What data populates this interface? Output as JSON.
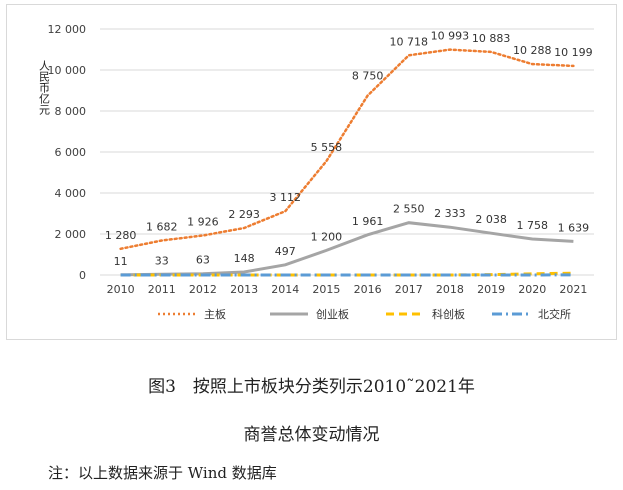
{
  "chart_data": {
    "type": "line",
    "ylabel": "人民币亿元",
    "ylim": [
      0,
      12000
    ],
    "yticks": [
      0,
      2000,
      4000,
      6000,
      8000,
      10000,
      12000
    ],
    "ytick_labels": [
      "0",
      "2 000",
      "4 000",
      "6 000",
      "8 000",
      "10 000",
      "12 000"
    ],
    "categories": [
      "2010",
      "2011",
      "2012",
      "2013",
      "2014",
      "2015",
      "2016",
      "2017",
      "2018",
      "2019",
      "2020",
      "2021"
    ],
    "grid": "horizontal",
    "legend_position": "bottom",
    "series": [
      {
        "name": "主板",
        "color": "#ED7D31",
        "style": "dotted",
        "values": [
          1280,
          1682,
          1926,
          2293,
          3112,
          5558,
          8750,
          10718,
          10993,
          10883,
          10288,
          10199
        ],
        "labels": [
          "1 280",
          "1 682",
          "1 926",
          "2 293",
          "3 112",
          "5 558",
          "8 750",
          "10 718",
          "10 993",
          "10 883",
          "10 288",
          "10 199"
        ]
      },
      {
        "name": "创业板",
        "color": "#A5A5A5",
        "style": "solid",
        "values": [
          11,
          33,
          63,
          148,
          497,
          1200,
          1961,
          2550,
          2333,
          2038,
          1758,
          1639
        ],
        "labels": [
          "11",
          "33",
          "63",
          "148",
          "497",
          "1 200",
          "1 961",
          "2 550",
          "2 333",
          "2 038",
          "1 758",
          "1 639"
        ]
      },
      {
        "name": "科创板",
        "color": "#FFC000",
        "style": "dashed",
        "values": [
          0,
          0,
          0,
          0,
          0,
          0,
          0,
          0,
          0,
          20,
          60,
          90
        ]
      },
      {
        "name": "北交所",
        "color": "#5B9BD5",
        "style": "dashdot",
        "values": [
          0,
          0,
          0,
          0,
          0,
          0,
          0,
          0,
          0,
          0,
          0,
          10
        ]
      }
    ]
  },
  "caption": {
    "line1": "图3　按照上市板块分类列示2010˜2021年",
    "line2": "商誉总体变动情况"
  },
  "note": "注：以上数据来源于 Wind 数据库"
}
